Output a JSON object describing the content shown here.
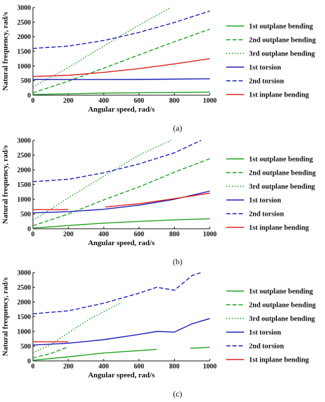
{
  "legend_entries": [
    {
      "name": "1st outplane bending",
      "color": "#1fa31f",
      "dash": "solid"
    },
    {
      "name": "2nd outplane bending",
      "color": "#1fa31f",
      "dash": "dashed"
    },
    {
      "name": "3rd outplane bending",
      "color": "#1fa31f",
      "dash": "dotted"
    },
    {
      "name": "1st torsion",
      "color": "#1c1cb8",
      "dash": "solid"
    },
    {
      "name": "2nd torsion",
      "color": "#1c1cb8",
      "dash": "dashed"
    },
    {
      "name": "1st inplane bending",
      "color": "#e02020",
      "dash": "solid"
    }
  ],
  "chart_data": [
    {
      "type": "line",
      "caption": "(a)",
      "xlabel": "Angular speed, rad/s",
      "ylabel": "Natural frequency, rad/s",
      "xlim": [
        0,
        1000
      ],
      "ylim": [
        0,
        3000
      ],
      "xticks": [
        0,
        200,
        400,
        600,
        800,
        1000
      ],
      "yticks": [
        0,
        500,
        1000,
        1500,
        2000,
        2500,
        3000
      ],
      "legend_position": "right",
      "series": [
        {
          "name": "1st outplane bending",
          "segments": [
            [
              [
                0,
                20
              ],
              [
                200,
                50
              ],
              [
                400,
                70
              ],
              [
                600,
                85
              ],
              [
                800,
                95
              ],
              [
                1000,
                105
              ]
            ]
          ]
        },
        {
          "name": "2nd outplane bending",
          "segments": [
            [
              [
                0,
                80
              ],
              [
                200,
                480
              ],
              [
                400,
                920
              ],
              [
                600,
                1380
              ],
              [
                800,
                1830
              ],
              [
                1000,
                2260
              ]
            ]
          ]
        },
        {
          "name": "3rd outplane bending",
          "segments": [
            [
              [
                0,
                280
              ],
              [
                200,
                950
              ],
              [
                400,
                1680
              ],
              [
                600,
                2400
              ],
              [
                780,
                3000
              ]
            ]
          ]
        },
        {
          "name": "1st torsion",
          "segments": [
            [
              [
                0,
                540
              ],
              [
                200,
                535
              ],
              [
                400,
                535
              ],
              [
                600,
                540
              ],
              [
                800,
                550
              ],
              [
                1000,
                560
              ]
            ]
          ]
        },
        {
          "name": "2nd torsion",
          "segments": [
            [
              [
                0,
                1600
              ],
              [
                200,
                1680
              ],
              [
                400,
                1870
              ],
              [
                600,
                2150
              ],
              [
                800,
                2490
              ],
              [
                1000,
                2880
              ]
            ]
          ]
        },
        {
          "name": "1st inplane bending",
          "segments": [
            [
              [
                0,
                640
              ],
              [
                200,
                680
              ],
              [
                400,
                780
              ],
              [
                600,
                910
              ],
              [
                800,
                1070
              ],
              [
                1000,
                1250
              ]
            ]
          ]
        }
      ]
    },
    {
      "type": "line",
      "caption": "(b)",
      "xlabel": "Angular speed, rad/s",
      "ylabel": "Natural frequency, rad/s",
      "xlim": [
        0,
        1000
      ],
      "ylim": [
        0,
        3000
      ],
      "xticks": [
        0,
        200,
        400,
        600,
        800,
        1000
      ],
      "yticks": [
        0,
        500,
        1000,
        1500,
        2000,
        2500,
        3000
      ],
      "legend_position": "right",
      "series": [
        {
          "name": "1st outplane bending",
          "segments": [
            [
              [
                0,
                20
              ],
              [
                200,
                110
              ],
              [
                400,
                190
              ],
              [
                600,
                250
              ],
              [
                800,
                300
              ],
              [
                1000,
                340
              ]
            ]
          ]
        },
        {
          "name": "2nd outplane bending",
          "segments": [
            [
              [
                0,
                100
              ],
              [
                200,
                500
              ],
              [
                400,
                980
              ],
              [
                600,
                1420
              ],
              [
                800,
                1920
              ],
              [
                1000,
                2380
              ]
            ]
          ]
        },
        {
          "name": "3rd outplane bending",
          "segments": [
            [
              [
                0,
                280
              ],
              [
                200,
                1050
              ],
              [
                400,
                1780
              ],
              [
                600,
                2500
              ],
              [
                780,
                3000
              ]
            ]
          ]
        },
        {
          "name": "1st torsion",
          "segments": [
            [
              [
                0,
                540
              ],
              [
                200,
                580
              ],
              [
                400,
                660
              ],
              [
                600,
                800
              ],
              [
                800,
                1000
              ],
              [
                1000,
                1280
              ]
            ]
          ]
        },
        {
          "name": "2nd torsion",
          "segments": [
            [
              [
                0,
                1600
              ],
              [
                200,
                1680
              ],
              [
                400,
                1900
              ],
              [
                600,
                2200
              ],
              [
                800,
                2580
              ],
              [
                950,
                3000
              ]
            ]
          ]
        },
        {
          "name": "1st inplane bending",
          "segments": [
            [
              [
                0,
                650
              ],
              [
                200,
                650
              ]
            ],
            [
              [
                410,
                740
              ],
              [
                600,
                850
              ],
              [
                800,
                1020
              ],
              [
                1000,
                1210
              ]
            ]
          ]
        }
      ]
    },
    {
      "type": "line",
      "caption": "(c)",
      "xlabel": "Angular speed, rad/s",
      "ylabel": "Natural frequency, rad/s",
      "xlim": [
        0,
        1000
      ],
      "ylim": [
        0,
        3000
      ],
      "xticks": [
        0,
        200,
        400,
        600,
        800,
        1000
      ],
      "yticks": [
        0,
        500,
        1000,
        1500,
        2000,
        2500,
        3000
      ],
      "legend_position": "right",
      "series": [
        {
          "name": "1st outplane bending",
          "segments": [
            [
              [
                0,
                20
              ],
              [
                200,
                140
              ],
              [
                400,
                270
              ],
              [
                600,
                350
              ],
              [
                700,
                390
              ]
            ],
            [
              [
                890,
                430
              ],
              [
                1000,
                460
              ]
            ]
          ]
        },
        {
          "name": "2nd outplane bending",
          "segments": [
            [
              [
                0,
                100
              ],
              [
                100,
                250
              ],
              [
                200,
                480
              ]
            ]
          ]
        },
        {
          "name": "3rd outplane bending",
          "segments": [
            [
              [
                0,
                280
              ],
              [
                100,
                550
              ],
              [
                200,
                950
              ],
              [
                300,
                1350
              ],
              [
                400,
                1670
              ],
              [
                500,
                1980
              ]
            ]
          ]
        },
        {
          "name": "1st torsion",
          "segments": [
            [
              [
                0,
                540
              ],
              [
                200,
                600
              ],
              [
                400,
                720
              ],
              [
                600,
                900
              ],
              [
                700,
                1000
              ],
              [
                800,
                980
              ],
              [
                900,
                1260
              ],
              [
                1000,
                1440
              ]
            ]
          ]
        },
        {
          "name": "2nd torsion",
          "segments": [
            [
              [
                0,
                1600
              ],
              [
                200,
                1700
              ],
              [
                400,
                1960
              ],
              [
                600,
                2300
              ],
              [
                700,
                2500
              ],
              [
                800,
                2400
              ],
              [
                900,
                2900
              ],
              [
                950,
                3000
              ]
            ]
          ]
        },
        {
          "name": "1st inplane bending",
          "segments": [
            [
              [
                0,
                650
              ],
              [
                200,
                650
              ]
            ]
          ]
        }
      ]
    }
  ]
}
